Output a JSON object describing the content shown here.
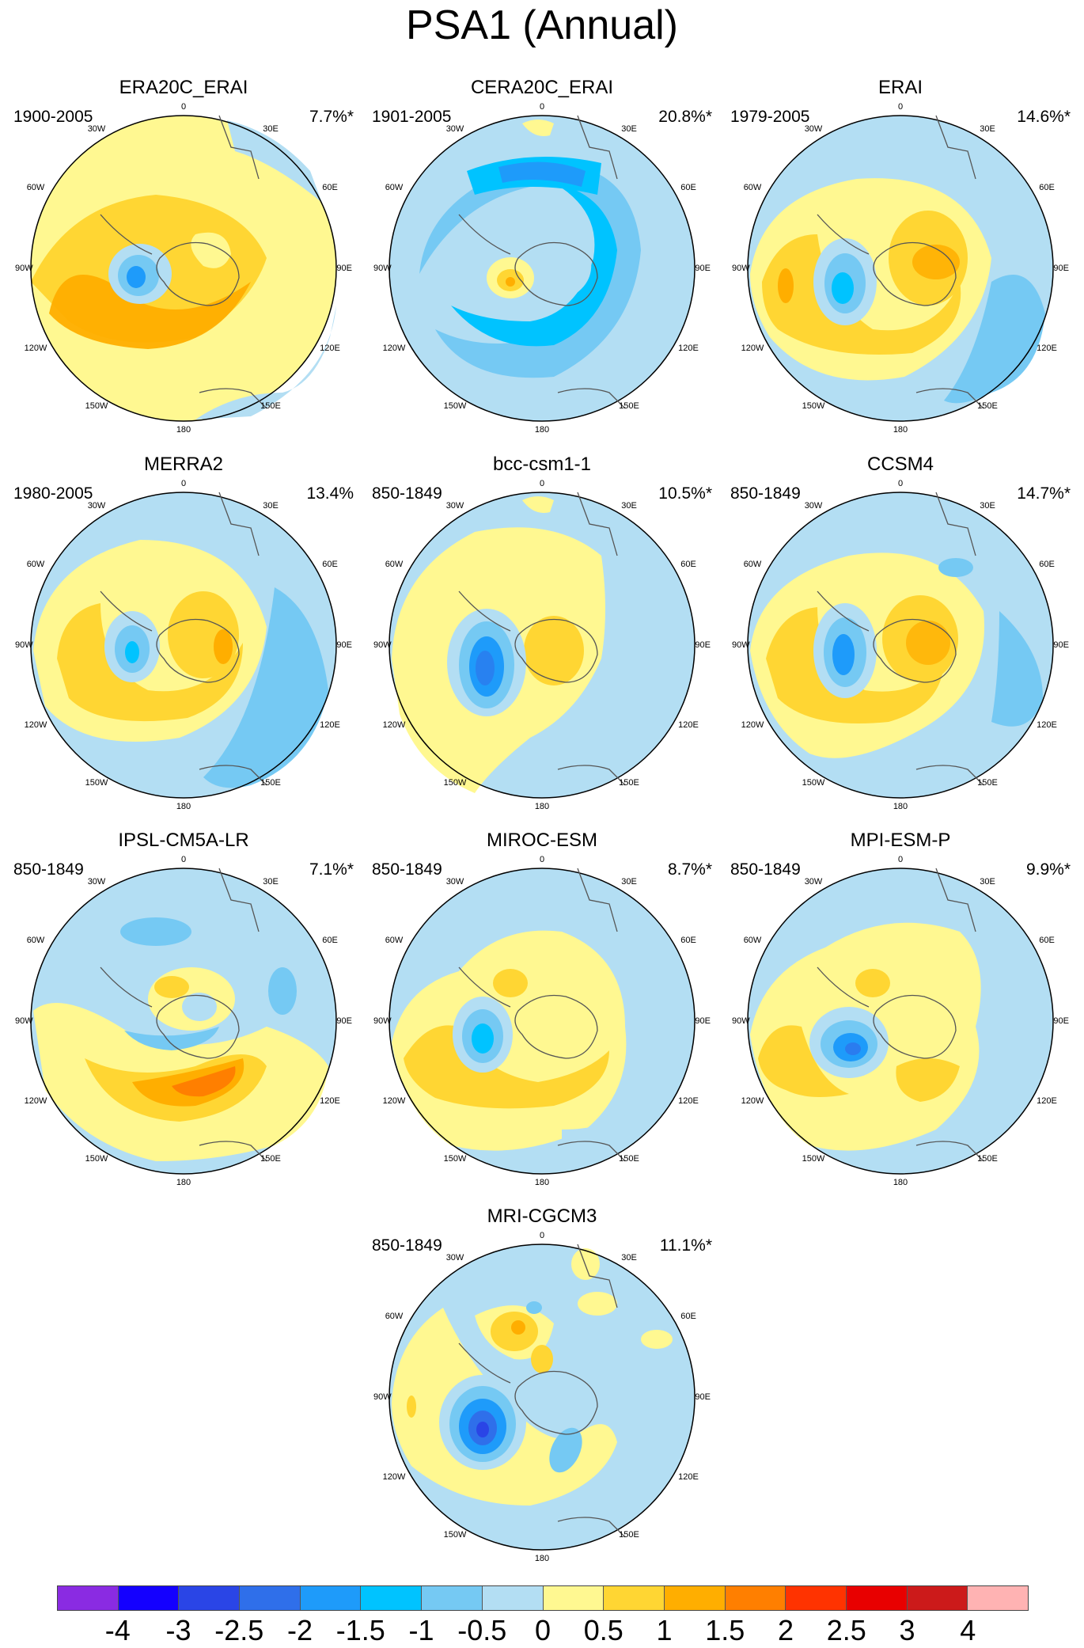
{
  "title": "PSA1 (Annual)",
  "longitude_labels": [
    "0",
    "30E",
    "60E",
    "90E",
    "120E",
    "150E",
    "180",
    "150W",
    "120W",
    "90W",
    "60W",
    "30W"
  ],
  "colorbar": {
    "colors": [
      "#8a2be2",
      "#1400ff",
      "#2a45e6",
      "#2f6fea",
      "#1e9bfa",
      "#00c3ff",
      "#75c9f3",
      "#b3def3",
      "#fff891",
      "#ffd633",
      "#ffae00",
      "#ff7f00",
      "#ff3300",
      "#e80000",
      "#cc1a1a",
      "#ffb3b3"
    ],
    "tick_labels": [
      "-4",
      "-3",
      "-2.5",
      "-2",
      "-1.5",
      "-1",
      "-0.5",
      "0",
      "0.5",
      "1",
      "1.5",
      "2",
      "2.5",
      "3",
      "4"
    ]
  },
  "panels": [
    {
      "name": "ERA20C_ERAI",
      "period": "1900-2005",
      "variance": "7.7%*"
    },
    {
      "name": "CERA20C_ERAI",
      "period": "1901-2005",
      "variance": "20.8%*"
    },
    {
      "name": "ERAI",
      "period": "1979-2005",
      "variance": "14.6%*"
    },
    {
      "name": "MERRA2",
      "period": "1980-2005",
      "variance": "13.4%"
    },
    {
      "name": "bcc-csm1-1",
      "period": "850-1849",
      "variance": "10.5%*"
    },
    {
      "name": "CCSM4",
      "period": "850-1849",
      "variance": "14.7%*"
    },
    {
      "name": "IPSL-CM5A-LR",
      "period": "850-1849",
      "variance": "7.1%*"
    },
    {
      "name": "MIROC-ESM",
      "period": "850-1849",
      "variance": "8.7%*"
    },
    {
      "name": "MPI-ESM-P",
      "period": "850-1849",
      "variance": "9.9%*"
    },
    {
      "name": "MRI-CGCM3",
      "period": "850-1849",
      "variance": "11.1%*"
    }
  ]
}
